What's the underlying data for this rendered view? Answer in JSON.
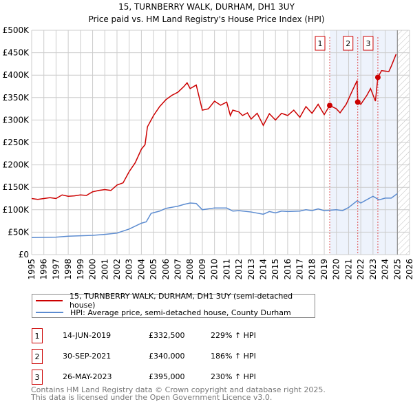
{
  "chart_data": {
    "type": "line",
    "title": "15, TURNBERRY WALK, DURHAM, DH1 3UY",
    "subtitle": "Price paid vs. HM Land Registry's House Price Index (HPI)",
    "xlim": [
      1995,
      2026
    ],
    "ylim": [
      0,
      500000
    ],
    "x_ticks": [
      "1995",
      "1996",
      "1997",
      "1998",
      "1999",
      "2000",
      "2001",
      "2002",
      "2003",
      "2004",
      "2005",
      "2006",
      "2007",
      "2008",
      "2009",
      "2010",
      "2011",
      "2012",
      "2013",
      "2014",
      "2015",
      "2016",
      "2017",
      "2018",
      "2019",
      "2020",
      "2021",
      "2022",
      "2023",
      "2024",
      "2025",
      "2026"
    ],
    "y_ticks": [
      {
        "v": 0,
        "label": "£0"
      },
      {
        "v": 50000,
        "label": "£50K"
      },
      {
        "v": 100000,
        "label": "£100K"
      },
      {
        "v": 150000,
        "label": "£150K"
      },
      {
        "v": 200000,
        "label": "£200K"
      },
      {
        "v": 250000,
        "label": "£250K"
      },
      {
        "v": 300000,
        "label": "£300K"
      },
      {
        "v": 350000,
        "label": "£350K"
      },
      {
        "v": 400000,
        "label": "£400K"
      },
      {
        "v": 450000,
        "label": "£450K"
      },
      {
        "v": 500000,
        "label": "£500K"
      }
    ],
    "grid": true,
    "shaded_range": [
      2019.45,
      2025.0
    ],
    "hatched_range": [
      2025.0,
      2026
    ],
    "series": [
      {
        "name": "15, TURNBERRY WALK, DURHAM, DH1 3UY (semi-detached house)",
        "color": "#cc0000",
        "x": [
          1995,
          1995.5,
          1996,
          1996.5,
          1997,
          1997.5,
          1998,
          1998.5,
          1999,
          1999.5,
          2000,
          2000.5,
          2001,
          2001.5,
          2002,
          2002.5,
          2003,
          2003.5,
          2004,
          2004.3,
          2004.5,
          2005,
          2005.5,
          2006,
          2006.5,
          2007,
          2007.5,
          2007.75,
          2008,
          2008.5,
          2009,
          2009.5,
          2010,
          2010.5,
          2011,
          2011.3,
          2011.5,
          2012,
          2012.3,
          2012.7,
          2013,
          2013.5,
          2014,
          2014.5,
          2015,
          2015.5,
          2016,
          2016.5,
          2017,
          2017.5,
          2018,
          2018.5,
          2019,
          2019.45,
          2020,
          2020.3,
          2020.8,
          2021.3,
          2021.7,
          2021.75,
          2022,
          2022.5,
          2022.8,
          2023.2,
          2023.4,
          2023.7,
          2024.3,
          2024.5,
          2024.9
        ],
        "y": [
          125000,
          123000,
          125000,
          127000,
          125000,
          133000,
          130000,
          131000,
          133000,
          132000,
          140000,
          143000,
          145000,
          143000,
          155000,
          160000,
          185000,
          205000,
          235000,
          245000,
          285000,
          310000,
          330000,
          345000,
          355000,
          362000,
          375000,
          383000,
          370000,
          378000,
          322000,
          325000,
          342000,
          333000,
          340000,
          310000,
          322000,
          318000,
          310000,
          316000,
          302000,
          315000,
          288000,
          314000,
          300000,
          315000,
          310000,
          322000,
          306000,
          330000,
          315000,
          335000,
          312000,
          332500,
          325000,
          316000,
          335000,
          365000,
          388000,
          340000,
          335000,
          355000,
          370000,
          342000,
          395000,
          410000,
          408000,
          420000,
          447000
        ]
      },
      {
        "name": "HPI: Average price, semi-detached house, County Durham",
        "color": "#5b8bd0",
        "x": [
          1995,
          1997,
          1998,
          2000,
          2001,
          2002,
          2003,
          2004,
          2004.4,
          2004.8,
          2005.5,
          2006,
          2007,
          2007.5,
          2008,
          2008.5,
          2009,
          2010,
          2011,
          2011.5,
          2012,
          2013,
          2014,
          2014.5,
          2015,
          2015.5,
          2016,
          2017,
          2017.5,
          2018,
          2018.5,
          2019,
          2020,
          2020.5,
          2021,
          2021.7,
          2022,
          2023,
          2023.5,
          2024,
          2024.5,
          2025
        ],
        "y": [
          38000,
          39000,
          41000,
          43000,
          45000,
          48000,
          57000,
          70000,
          73000,
          92000,
          97000,
          103000,
          108000,
          112000,
          115000,
          114000,
          100000,
          104000,
          104000,
          97000,
          98000,
          95000,
          90000,
          96000,
          93000,
          97000,
          96000,
          97000,
          100000,
          98000,
          102000,
          98000,
          100000,
          98000,
          105000,
          120000,
          115000,
          130000,
          122000,
          126000,
          126000,
          136000
        ]
      }
    ],
    "sales": [
      {
        "num": "1",
        "x": 2019.45,
        "y": 332500,
        "date": "14-JUN-2019",
        "price": "£332,500",
        "hpi": "229% ↑ HPI"
      },
      {
        "num": "2",
        "x": 2021.75,
        "y": 340000,
        "date": "30-SEP-2021",
        "price": "£340,000",
        "hpi": "186% ↑ HPI"
      },
      {
        "num": "3",
        "x": 2023.4,
        "y": 395000,
        "date": "26-MAY-2023",
        "price": "£395,000",
        "hpi": "230% ↑ HPI"
      }
    ]
  },
  "legend": {
    "red": "15, TURNBERRY WALK, DURHAM, DH1 3UY (semi-detached house)",
    "blue": "HPI: Average price, semi-detached house, County Durham"
  },
  "footer": {
    "line1": "Contains HM Land Registry data © Crown copyright and database right 2025.",
    "line2": "This data is licensed under the Open Government Licence v3.0."
  }
}
